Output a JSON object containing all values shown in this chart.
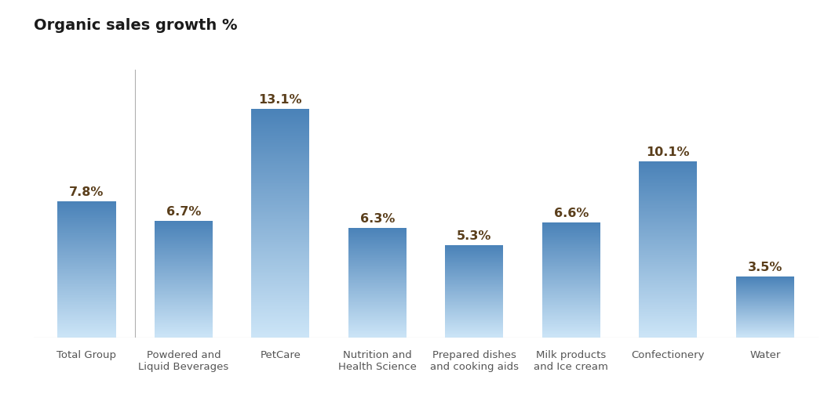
{
  "title": "Organic sales growth %",
  "categories": [
    "Total Group",
    "Powdered and\nLiquid Beverages",
    "PetCare",
    "Nutrition and\nHealth Science",
    "Prepared dishes\nand cooking aids",
    "Milk products\nand Ice cream",
    "Confectionery",
    "Water"
  ],
  "values": [
    7.8,
    6.7,
    13.1,
    6.3,
    5.3,
    6.6,
    10.1,
    3.5
  ],
  "labels": [
    "7.8%",
    "6.7%",
    "13.1%",
    "6.3%",
    "5.3%",
    "6.6%",
    "10.1%",
    "3.5%"
  ],
  "bar_color_top": "#4a82b8",
  "bar_color_bottom": "#cce5f7",
  "label_color": "#5a3e1b",
  "title_color": "#1a1a1a",
  "background_color": "#ffffff",
  "ylim": [
    0,
    16.5
  ],
  "title_fontsize": 14,
  "label_fontsize": 11.5,
  "tick_fontsize": 9.5,
  "bar_width": 0.6
}
